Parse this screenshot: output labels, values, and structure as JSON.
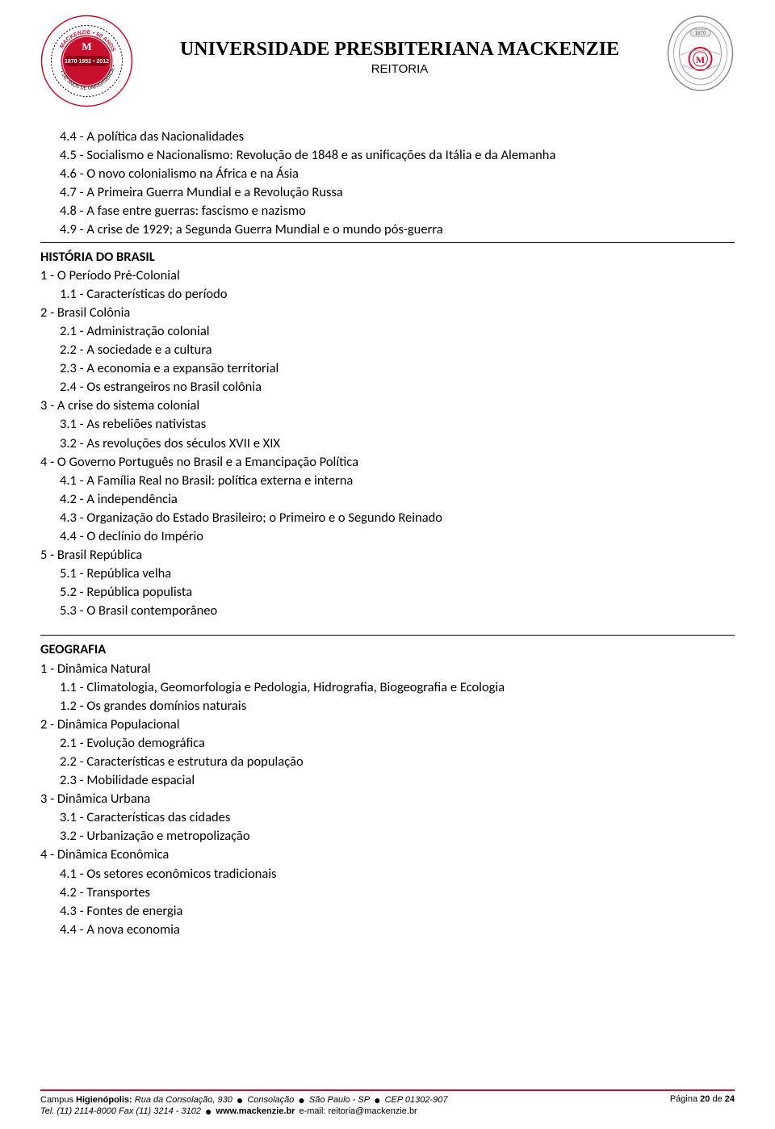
{
  "header": {
    "university": "UNIVERSIDADE PRESBITERIANA MACKENZIE",
    "subtitle": "REITORIA"
  },
  "content": {
    "intro_items": [
      "4.4 - A política das Nacionalidades",
      "4.5 - Socialismo e Nacionalismo: Revolução de 1848 e as unificações da Itália e da Alemanha",
      "4.6 - O novo colonialismo na África e na Ásia",
      "4.7 - A Primeira Guerra Mundial e a Revolução Russa",
      "4.8 - A fase entre guerras: fascismo e nazismo",
      "4.9 - A crise de 1929; a Segunda Guerra Mundial e o mundo pós-guerra"
    ],
    "historia": {
      "heading": "HISTÓRIA DO BRASIL",
      "items": [
        {
          "text": "1 - O Período Pré-Colonial",
          "indent": 0
        },
        {
          "text": "1.1 - Características do período",
          "indent": 1
        },
        {
          "text": "2 - Brasil Colônia",
          "indent": 0
        },
        {
          "text": "2.1 - Administração colonial",
          "indent": 1
        },
        {
          "text": "2.2 - A sociedade e a cultura",
          "indent": 1
        },
        {
          "text": "2.3 - A economia e a expansão territorial",
          "indent": 1
        },
        {
          "text": "2.4 - Os estrangeiros no Brasil colônia",
          "indent": 1
        },
        {
          "text": "3 - A crise do sistema colonial",
          "indent": 0
        },
        {
          "text": "3.1 - As rebeliões nativistas",
          "indent": 1
        },
        {
          "text": "3.2 - As revoluções dos séculos XVII e XIX",
          "indent": 1
        },
        {
          "text": "4 - O Governo Português no Brasil e a Emancipação Política",
          "indent": 0
        },
        {
          "text": "4.1 - A Família Real no Brasil: política externa e interna",
          "indent": 1
        },
        {
          "text": "4.2 - A independência",
          "indent": 1
        },
        {
          "text": "4.3 - Organização do Estado Brasileiro; o Primeiro e o Segundo Reinado",
          "indent": 1
        },
        {
          "text": "4.4 - O declínio do Império",
          "indent": 1
        },
        {
          "text": "5 - Brasil República",
          "indent": 0
        },
        {
          "text": "5.1 - República velha",
          "indent": 1
        },
        {
          "text": "5.2 - República populista",
          "indent": 1
        },
        {
          "text": "5.3 - O Brasil contemporâneo",
          "indent": 1
        }
      ]
    },
    "geografia": {
      "heading": "GEOGRAFIA",
      "items": [
        {
          "text": "1 - Dinâmica Natural",
          "indent": 0
        },
        {
          "text": "1.1 - Climatologia, Geomorfologia e Pedologia, Hidrografia, Biogeografia e Ecologia",
          "indent": 1
        },
        {
          "text": "1.2 - Os grandes domínios naturais",
          "indent": 1
        },
        {
          "text": "2 - Dinâmica Populacional",
          "indent": 0
        },
        {
          "text": "2.1 - Evolução demográfica",
          "indent": 1
        },
        {
          "text": "2.2 - Características e estrutura da população",
          "indent": 1
        },
        {
          "text": "2.3 - Mobilidade espacial",
          "indent": 1
        },
        {
          "text": "3 - Dinâmica Urbana",
          "indent": 0
        },
        {
          "text": "3.1 - Características das cidades",
          "indent": 1
        },
        {
          "text": "3.2 - Urbanização e metropolização",
          "indent": 1
        },
        {
          "text": "4 - Dinâmica Econômica",
          "indent": 0
        },
        {
          "text": "4.1 - Os setores econômicos tradicionais",
          "indent": 1
        },
        {
          "text": "4.2 - Transportes",
          "indent": 1
        },
        {
          "text": "4.3 - Fontes de energia",
          "indent": 1
        },
        {
          "text": "4.4 - A nova economia",
          "indent": 1
        }
      ]
    }
  },
  "footer": {
    "campus_label": "Campus ",
    "campus_name": "Higienópolis: ",
    "address": "Rua da Consolação, 930",
    "district": "Consolação",
    "city": "São Paulo - SP",
    "cep": "CEP 01302-907",
    "tel": "Tel. (11) 2114-8000 Fax (11) 3214 - 3102",
    "site": "www.mackenzie.br",
    "email": "e-mail: reitoria@mackenzie.br",
    "page_label": "Página ",
    "page_current": "20",
    "page_of": " de ",
    "page_total": "24"
  },
  "colors": {
    "red": "#c8102e",
    "text": "#000000",
    "background": "#ffffff"
  },
  "logo_left": {
    "outer_text_top": "60 ANOS",
    "outer_text_right": "DE UNIVERSIDADE",
    "outer_text_bottom": "142 ANOS DE",
    "inner_years": "1870  1952 • 2012",
    "brand": "MACKENZIE"
  },
  "logo_right": {
    "year": "1870",
    "brand": "M"
  }
}
